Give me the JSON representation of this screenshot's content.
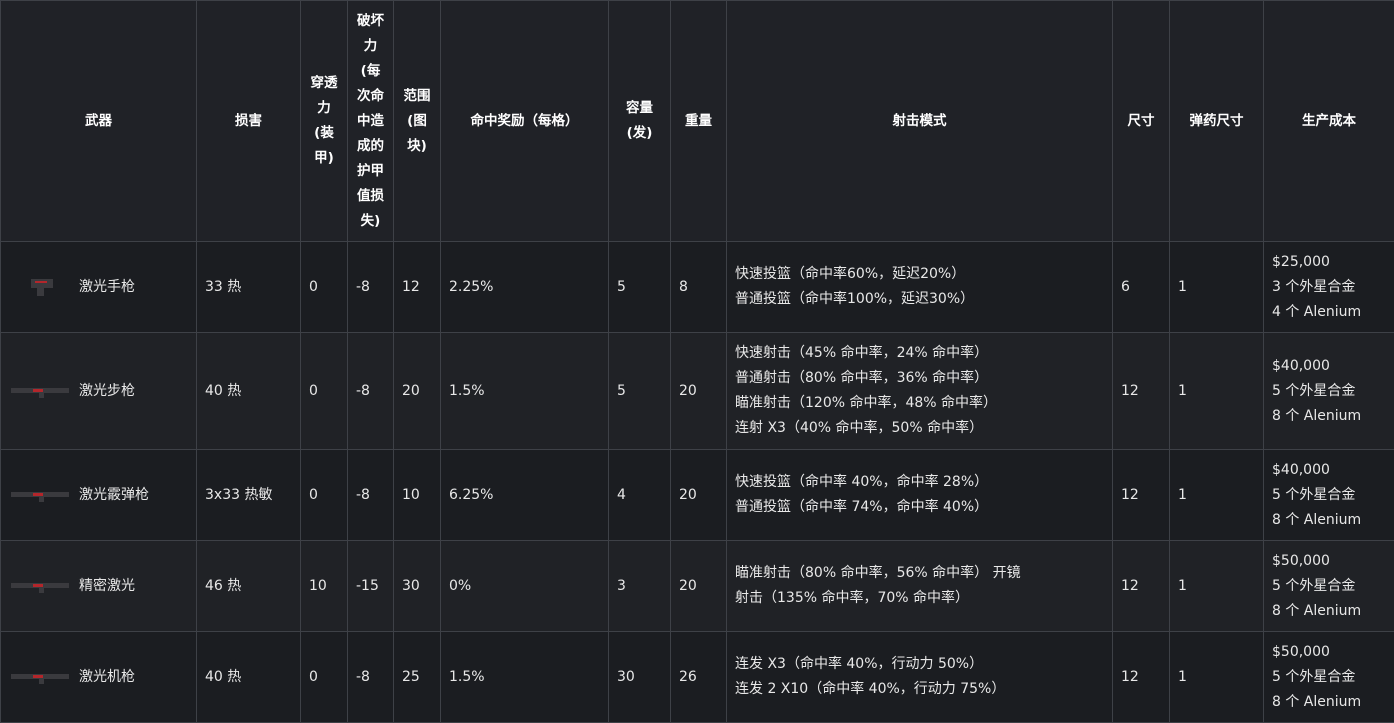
{
  "headers": [
    "武器",
    "损害",
    "穿透力 (装甲)",
    "破坏力 (每次命中造成的护甲值损失)",
    "范围 (图块)",
    "命中奖励（每格）",
    "容量 (发)",
    "重量",
    "射击模式",
    "尺寸",
    "弹药尺寸",
    "生产成本"
  ],
  "rows": [
    {
      "weapon": "激光手枪",
      "icon": "laser-pistol-icon",
      "damage": "33 热",
      "pen": "0",
      "shred": "-8",
      "range": "12",
      "aim": "2.25%",
      "cap": "5",
      "weight": "8",
      "modes": [
        "快速投篮（命中率60%，延迟20%）",
        "普通投篮（命中率100%，延迟30%）"
      ],
      "size": "6",
      "ammo": "1",
      "cost": [
        "$25,000",
        "3 个外星合金",
        "4 个 Alenium"
      ]
    },
    {
      "weapon": "激光步枪",
      "icon": "laser-rifle-icon",
      "damage": "40 热",
      "pen": "0",
      "shred": "-8",
      "range": "20",
      "aim": "1.5%",
      "cap": "5",
      "weight": "20",
      "modes": [
        "快速射击（45% 命中率，24% 命中率）",
        "普通射击（80% 命中率，36% 命中率）",
        "瞄准射击（120% 命中率，48% 命中率）",
        "连射 X3（40% 命中率，50% 命中率）"
      ],
      "size": "12",
      "ammo": "1",
      "cost": [
        "$40,000",
        "5 个外星合金",
        "8 个 Alenium"
      ]
    },
    {
      "weapon": "激光霰弹枪",
      "icon": "laser-shotgun-icon",
      "damage": "3x33 热敏",
      "pen": "0",
      "shred": "-8",
      "range": "10",
      "aim": "6.25%",
      "cap": "4",
      "weight": "20",
      "modes": [
        "快速投篮（命中率 40%，命中率 28%）",
        "普通投篮（命中率 74%，命中率 40%）"
      ],
      "size": "12",
      "ammo": "1",
      "cost": [
        "$40,000",
        "5 个外星合金",
        "8 个 Alenium"
      ]
    },
    {
      "weapon": "精密激光",
      "icon": "precision-laser-icon",
      "damage": "46 热",
      "pen": "10",
      "shred": "-15",
      "range": "30",
      "aim": "0%",
      "cap": "3",
      "weight": "20",
      "modes": [
        "瞄准射击（80% 命中率，56% 命中率） 开镜",
        "射击（135% 命中率，70% 命中率）"
      ],
      "size": "12",
      "ammo": "1",
      "cost": [
        "$50,000",
        "5 个外星合金",
        "8 个 Alenium"
      ]
    },
    {
      "weapon": "激光机枪",
      "icon": "laser-machine-gun-icon",
      "damage": "40 热",
      "pen": "0",
      "shred": "-8",
      "range": "25",
      "aim": "1.5%",
      "cap": "30",
      "weight": "26",
      "modes": [
        "连发 X3（命中率 40%，行动力 50%）",
        "连发 2 X10（命中率 40%，行动力 75%）"
      ],
      "size": "12",
      "ammo": "1",
      "cost": [
        "$50,000",
        "5 个外星合金",
        "8 个 Alenium"
      ]
    }
  ]
}
